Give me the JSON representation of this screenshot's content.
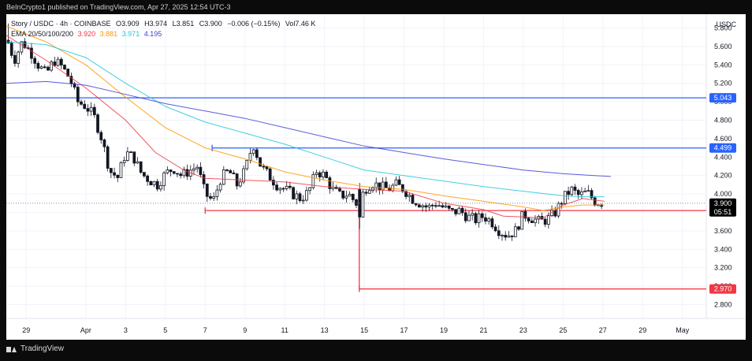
{
  "header": {
    "publisher_text": "BeInCrypto1 published on TradingView.com, Apr 27, 2025 12:54 UTC-3"
  },
  "legend": {
    "symbol_line": "Story / USDC · 4h · COINBASE",
    "ohlc": [
      {
        "label": "O",
        "value": "3.909"
      },
      {
        "label": "H",
        "value": "3.974"
      },
      {
        "label": "L",
        "value": "3.851"
      },
      {
        "label": "C",
        "value": "3.900"
      }
    ],
    "change": "−0.006 (−0.15%)",
    "volume_label": "Vol",
    "volume_value": "7.46 K",
    "ema_label": "EMA 20/50/100/200",
    "ema_values": [
      {
        "value": "3.920",
        "color": "#f23645"
      },
      {
        "value": "3.881",
        "color": "#ff9800"
      },
      {
        "value": "3.971",
        "color": "#26c6da"
      },
      {
        "value": "4.195",
        "color": "#3f3fd4"
      }
    ]
  },
  "currency_label": "USDC",
  "footer": {
    "brand": "TradingView"
  },
  "chart_data": {
    "type": "candlestick",
    "ylim": [
      2.65,
      5.95
    ],
    "y_ticks": [
      "5.800",
      "5.600",
      "5.400",
      "5.200",
      "5.000",
      "4.800",
      "4.600",
      "4.400",
      "4.200",
      "4.000",
      "3.800",
      "3.600",
      "3.400",
      "3.200",
      "3.000",
      "2.800"
    ],
    "x_ticks": [
      "29",
      "Apr",
      "3",
      "5",
      "7",
      "9",
      "11",
      "13",
      "15",
      "17",
      "19",
      "21",
      "23",
      "25",
      "27",
      "29",
      "May"
    ],
    "x_tick_days": [
      29,
      32,
      34,
      36,
      38,
      40,
      42,
      44,
      46,
      48,
      50,
      52,
      54,
      56,
      58,
      60,
      62
    ],
    "xlim": [
      28,
      63.2
    ],
    "last_candle_day": 58.08,
    "price_levels": [
      {
        "value": 5.043,
        "label": "5.043",
        "color": "#2962ff",
        "from_day": 28
      },
      {
        "value": 4.499,
        "label": "4.499",
        "color": "#2962ff",
        "from_day": 38.35
      },
      {
        "value": 3.82,
        "label": "3.820",
        "color": "#f23645",
        "from_day": 38.0
      },
      {
        "value": 2.97,
        "label": "2.970",
        "color": "#f23645",
        "from_day": 45.75
      }
    ],
    "current_price": {
      "value": 3.9,
      "label": "3.900",
      "countdown": "05:51",
      "color": "#000000"
    },
    "close_path": [
      [
        28.0,
        5.7
      ],
      [
        28.4,
        5.45
      ],
      [
        28.8,
        5.65
      ],
      [
        29.2,
        5.55
      ],
      [
        29.6,
        5.4
      ],
      [
        30.0,
        5.3
      ],
      [
        30.4,
        5.45
      ],
      [
        30.8,
        5.38
      ],
      [
        31.2,
        5.25
      ],
      [
        31.6,
        5.0
      ],
      [
        32.0,
        4.95
      ],
      [
        32.4,
        4.85
      ],
      [
        32.8,
        4.6
      ],
      [
        33.2,
        4.25
      ],
      [
        33.6,
        4.18
      ],
      [
        34.0,
        4.45
      ],
      [
        34.4,
        4.4
      ],
      [
        34.8,
        4.22
      ],
      [
        35.2,
        4.15
      ],
      [
        35.6,
        4.1
      ],
      [
        36.0,
        4.22
      ],
      [
        36.4,
        4.28
      ],
      [
        36.8,
        4.2
      ],
      [
        37.2,
        4.25
      ],
      [
        37.6,
        4.3
      ],
      [
        38.0,
        4.0
      ],
      [
        38.4,
        3.92
      ],
      [
        38.8,
        4.18
      ],
      [
        39.2,
        4.25
      ],
      [
        39.6,
        4.1
      ],
      [
        40.0,
        4.25
      ],
      [
        40.4,
        4.55
      ],
      [
        40.8,
        4.3
      ],
      [
        41.2,
        4.2
      ],
      [
        41.6,
        4.1
      ],
      [
        42.0,
        4.05
      ],
      [
        42.4,
        4.0
      ],
      [
        42.8,
        3.95
      ],
      [
        43.2,
        4.02
      ],
      [
        43.6,
        4.25
      ],
      [
        44.0,
        4.2
      ],
      [
        44.4,
        4.05
      ],
      [
        44.8,
        3.98
      ],
      [
        45.2,
        4.0
      ],
      [
        45.6,
        3.9
      ],
      [
        45.8,
        3.9
      ],
      [
        46.0,
        4.05
      ],
      [
        46.4,
        4.12
      ],
      [
        46.8,
        4.08
      ],
      [
        47.2,
        4.05
      ],
      [
        47.6,
        4.1
      ],
      [
        48.0,
        4.05
      ],
      [
        48.4,
        3.95
      ],
      [
        48.8,
        3.9
      ],
      [
        49.2,
        3.85
      ],
      [
        49.6,
        3.9
      ],
      [
        50.0,
        3.85
      ],
      [
        50.4,
        3.8
      ],
      [
        50.8,
        3.82
      ],
      [
        51.2,
        3.75
      ],
      [
        51.6,
        3.72
      ],
      [
        52.0,
        3.76
      ],
      [
        52.4,
        3.7
      ],
      [
        52.8,
        3.6
      ],
      [
        53.2,
        3.55
      ],
      [
        53.6,
        3.6
      ],
      [
        54.0,
        3.78
      ],
      [
        54.4,
        3.74
      ],
      [
        54.8,
        3.7
      ],
      [
        55.2,
        3.72
      ],
      [
        55.6,
        3.8
      ],
      [
        56.0,
        3.95
      ],
      [
        56.4,
        4.05
      ],
      [
        56.8,
        3.98
      ],
      [
        57.2,
        4.02
      ],
      [
        57.6,
        3.92
      ],
      [
        58.08,
        3.9
      ]
    ],
    "series": [
      {
        "name": "EMA 20",
        "color": "#f23645",
        "points": [
          [
            28.0,
            5.72
          ],
          [
            30.0,
            5.45
          ],
          [
            32.0,
            5.15
          ],
          [
            34.0,
            4.8
          ],
          [
            35.5,
            4.45
          ],
          [
            37.0,
            4.25
          ],
          [
            38.0,
            4.17
          ],
          [
            40.0,
            4.15
          ],
          [
            42.0,
            4.13
          ],
          [
            44.0,
            4.08
          ],
          [
            46.0,
            4.05
          ],
          [
            48.0,
            4.03
          ],
          [
            50.0,
            3.9
          ],
          [
            52.0,
            3.83
          ],
          [
            53.0,
            3.76
          ],
          [
            54.0,
            3.75
          ],
          [
            55.0,
            3.74
          ],
          [
            56.0,
            3.88
          ],
          [
            57.0,
            3.95
          ],
          [
            58.08,
            3.92
          ]
        ]
      },
      {
        "name": "EMA 50",
        "color": "#ff9800",
        "points": [
          [
            28.0,
            5.82
          ],
          [
            30.0,
            5.65
          ],
          [
            32.0,
            5.4
          ],
          [
            34.0,
            5.05
          ],
          [
            36.0,
            4.72
          ],
          [
            38.0,
            4.5
          ],
          [
            40.0,
            4.38
          ],
          [
            42.0,
            4.24
          ],
          [
            44.0,
            4.15
          ],
          [
            46.0,
            4.08
          ],
          [
            48.0,
            4.05
          ],
          [
            50.0,
            3.98
          ],
          [
            52.0,
            3.92
          ],
          [
            54.0,
            3.86
          ],
          [
            55.0,
            3.82
          ],
          [
            56.0,
            3.86
          ],
          [
            57.0,
            3.88
          ],
          [
            58.08,
            3.88
          ]
        ]
      },
      {
        "name": "EMA 100",
        "color": "#26c6da",
        "points": [
          [
            28.0,
            5.65
          ],
          [
            30.0,
            5.62
          ],
          [
            32.0,
            5.48
          ],
          [
            34.0,
            5.2
          ],
          [
            36.0,
            4.95
          ],
          [
            38.0,
            4.78
          ],
          [
            40.0,
            4.66
          ],
          [
            42.0,
            4.54
          ],
          [
            44.0,
            4.4
          ],
          [
            46.0,
            4.26
          ],
          [
            48.0,
            4.2
          ],
          [
            50.0,
            4.14
          ],
          [
            52.0,
            4.08
          ],
          [
            54.0,
            4.03
          ],
          [
            56.0,
            3.98
          ],
          [
            57.0,
            3.97
          ],
          [
            58.08,
            3.97
          ]
        ]
      },
      {
        "name": "EMA 200",
        "color": "#3f3fd4",
        "points": [
          [
            28.0,
            5.2
          ],
          [
            30.0,
            5.22
          ],
          [
            32.0,
            5.18
          ],
          [
            34.0,
            5.08
          ],
          [
            36.0,
            4.98
          ],
          [
            38.0,
            4.9
          ],
          [
            40.0,
            4.82
          ],
          [
            42.0,
            4.72
          ],
          [
            44.0,
            4.62
          ],
          [
            46.0,
            4.52
          ],
          [
            48.0,
            4.45
          ],
          [
            50.0,
            4.38
          ],
          [
            52.0,
            4.32
          ],
          [
            54.0,
            4.26
          ],
          [
            56.0,
            4.22
          ],
          [
            58.4,
            4.19
          ]
        ]
      }
    ]
  }
}
